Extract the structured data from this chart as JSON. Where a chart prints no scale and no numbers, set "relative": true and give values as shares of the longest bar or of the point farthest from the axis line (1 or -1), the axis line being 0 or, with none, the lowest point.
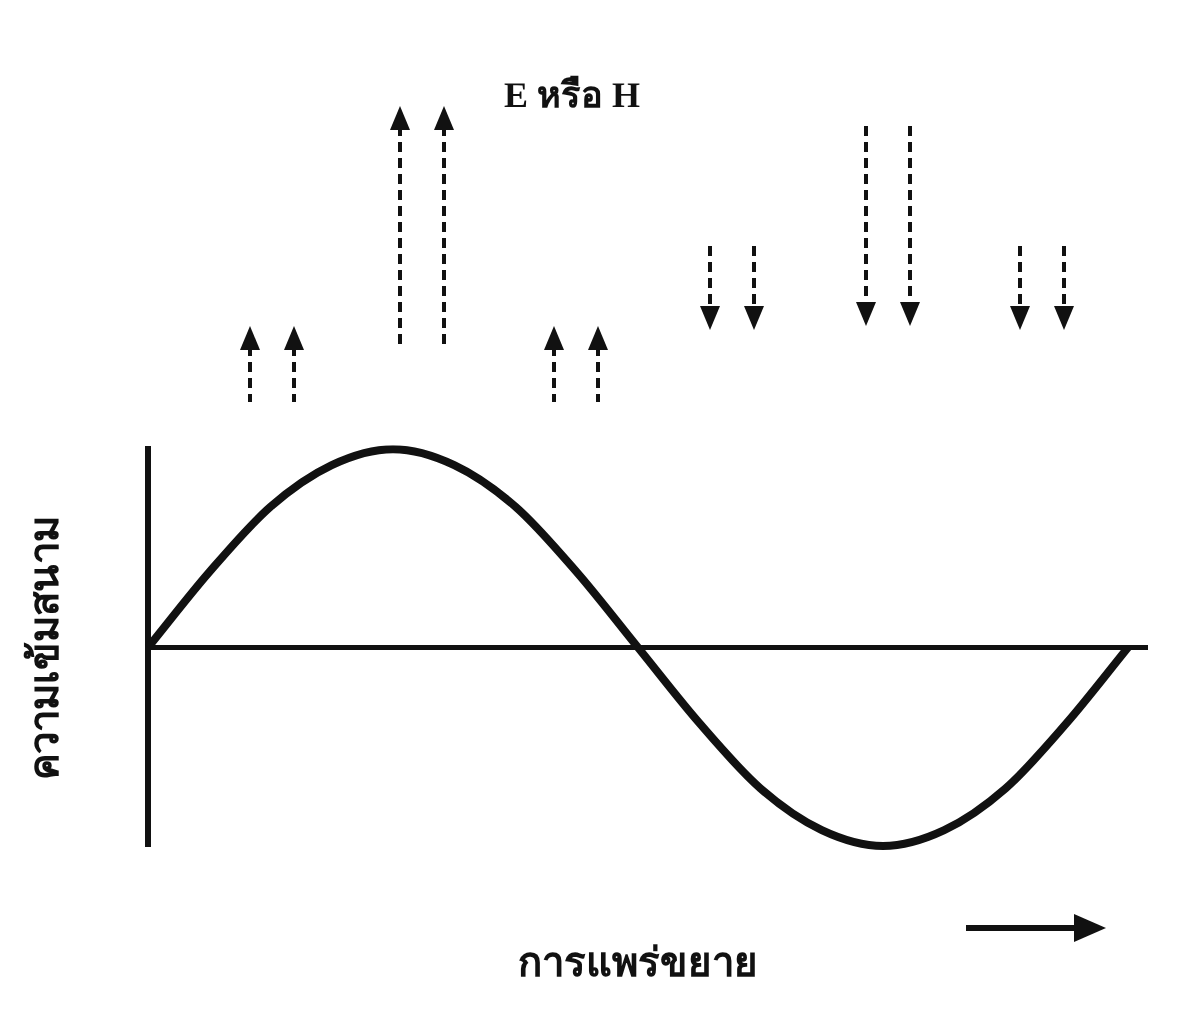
{
  "chart_data": {
    "type": "line",
    "title": "E หรือ H",
    "xlabel": "การแพร่ขยาย",
    "ylabel": "ความเข้มสนาม",
    "relative": true,
    "legend": false,
    "grid": false,
    "marker": "none",
    "line_style": "solid",
    "categories": [
      null,
      null,
      null,
      null,
      null,
      null,
      null,
      null,
      null,
      null,
      null,
      null,
      null,
      null,
      null,
      null,
      null
    ],
    "series": [
      {
        "color": "#111111",
        "values": [
          0,
          0.38,
          0.71,
          0.92,
          1,
          0.92,
          0.71,
          0.38,
          0,
          -0.38,
          -0.71,
          -0.92,
          -1,
          -0.92,
          -0.71,
          -0.38,
          0
        ]
      }
    ]
  }
}
